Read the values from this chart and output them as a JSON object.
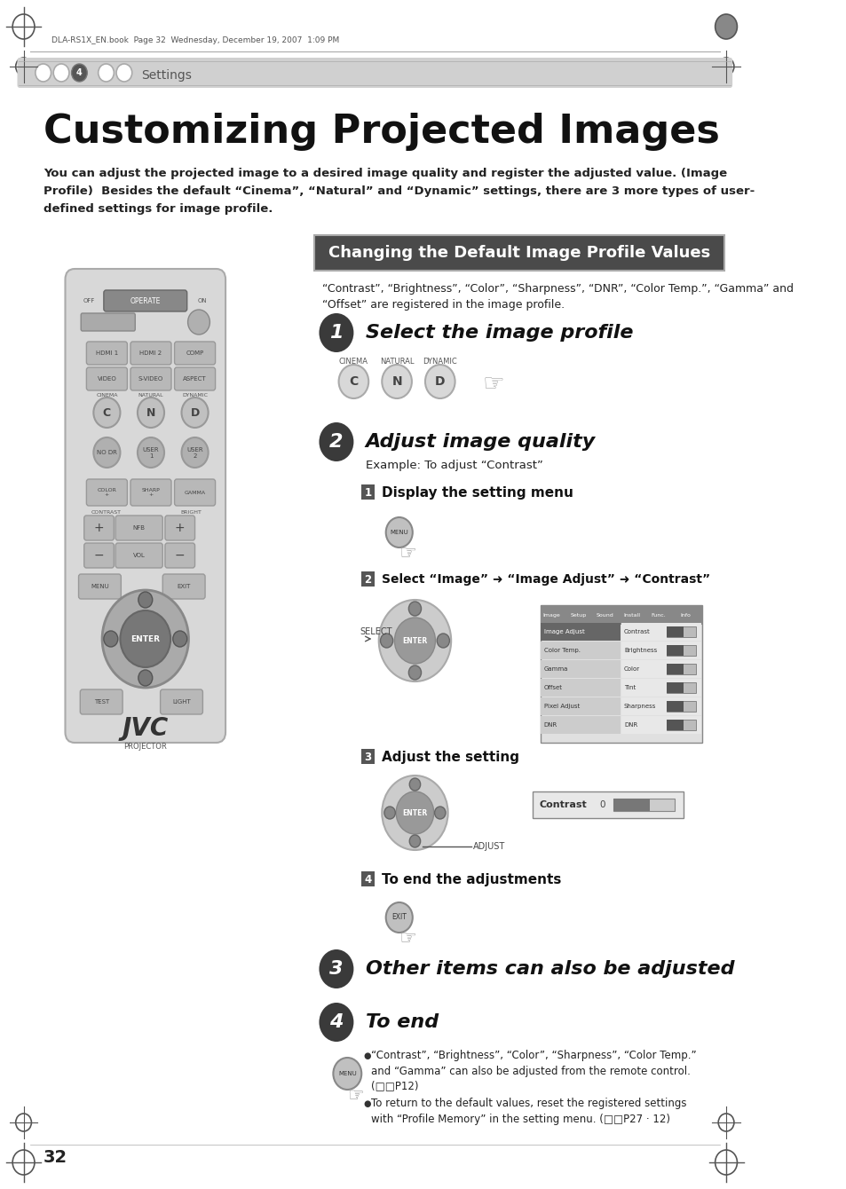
{
  "page_bg": "#ffffff",
  "header_text": "DLA-RS1X_EN.book  Page 32  Wednesday, December 19, 2007  1:09 PM",
  "settings_bar_color": "#d0d0d0",
  "settings_label": "Settings",
  "chapter_num": "4",
  "title": "Customizing Projected Images",
  "intro_text": "You can adjust the projected image to a desired image quality and register the adjusted value. (Image\nProfile)  Besides the default “Cinema”, “Natural” and “Dynamic” settings, there are 3 more types of user-\ndefined settings for image profile.",
  "section_title": "Changing the Default Image Profile Values",
  "section_title_bg": "#4a4a4a",
  "section_title_color": "#ffffff",
  "section_desc": "“Contrast”, “Brightness”, “Color”, “Sharpness”, “DNR”, “Color Temp.”, “Gamma” and\n“Offset” are registered in the image profile.",
  "step1_title": "Select the image profile",
  "step2_title": "Adjust image quality",
  "step2_example": "Example: To adjust “Contrast”",
  "step2_sub1": "Display the setting menu",
  "step2_sub2": "Select “Image” ➜ “Image Adjust” ➜ “Contrast”",
  "step2_sub3": "Adjust the setting",
  "step2_sub4": "To end the adjustments",
  "step3_title": "Other items can also be adjusted",
  "step4_title": "To end",
  "footnote1": "“Contrast”, “Brightness”, “Color”, “Sharpness”, “Color Temp.”\nand “Gamma” can also be adjusted from the remote control.\n(□□P12)",
  "footnote2": "To return to the default values, reset the registered settings\nwith “Profile Memory” in the setting menu. (□□P27 · 12)",
  "page_number": "32",
  "adjust_label": "ADJUST",
  "select_label": "SELECT",
  "step_circle_color": "#3a3a3a",
  "step_circle_text_color": "#ffffff",
  "substep_box_color": "#555555",
  "substep_text_color": "#ffffff"
}
